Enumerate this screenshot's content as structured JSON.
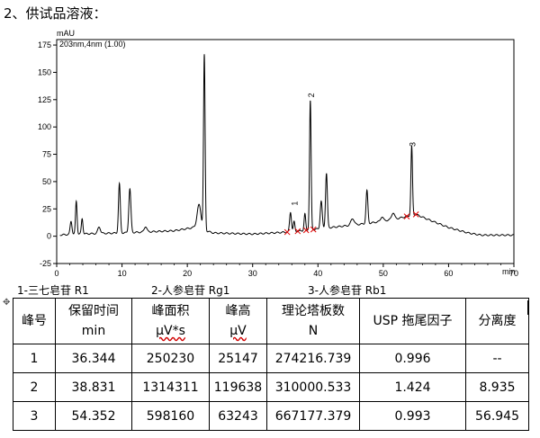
{
  "heading": "2、供试品溶液：",
  "chart_data": {
    "type": "line",
    "ylabel": "mAU",
    "xlabel": "min",
    "series_label": "203nm,4nm (1.00)",
    "xlim": [
      0,
      70
    ],
    "ylim": [
      -25,
      180
    ],
    "x_ticks": [
      0,
      10,
      20,
      30,
      40,
      50,
      60,
      70
    ],
    "y_ticks": [
      -25,
      0,
      25,
      50,
      75,
      100,
      125,
      150,
      175
    ],
    "baseline": [
      [
        0,
        1
      ],
      [
        3,
        2
      ],
      [
        10,
        3
      ],
      [
        18,
        5
      ],
      [
        21,
        8
      ],
      [
        24,
        3
      ],
      [
        30,
        2
      ],
      [
        36,
        4
      ],
      [
        42,
        8
      ],
      [
        48,
        12
      ],
      [
        52,
        16
      ],
      [
        55,
        20
      ],
      [
        57,
        15
      ],
      [
        60,
        8
      ],
      [
        63,
        3
      ],
      [
        65,
        1
      ],
      [
        70,
        1
      ]
    ],
    "peaks": [
      {
        "x": 2.2,
        "h": 12,
        "w": 0.14
      },
      {
        "x": 3.0,
        "h": 30,
        "w": 0.12
      },
      {
        "x": 3.9,
        "h": 14,
        "w": 0.12
      },
      {
        "x": 6.5,
        "h": 6,
        "w": 0.2
      },
      {
        "x": 9.6,
        "h": 45,
        "w": 0.14
      },
      {
        "x": 11.2,
        "h": 40,
        "w": 0.16
      },
      {
        "x": 13.6,
        "h": 5,
        "w": 0.2
      },
      {
        "x": 21.8,
        "h": 22,
        "w": 0.3
      },
      {
        "x": 22.6,
        "h": 160,
        "w": 0.12
      },
      {
        "x": 35.8,
        "h": 18,
        "w": 0.14
      },
      {
        "x": 36.344,
        "h": 9,
        "w": 0.12
      },
      {
        "x": 38.0,
        "h": 15,
        "w": 0.12
      },
      {
        "x": 38.831,
        "h": 118,
        "w": 0.12
      },
      {
        "x": 40.5,
        "h": 25,
        "w": 0.15
      },
      {
        "x": 41.3,
        "h": 50,
        "w": 0.14
      },
      {
        "x": 45.3,
        "h": 6,
        "w": 0.25
      },
      {
        "x": 47.5,
        "h": 30,
        "w": 0.14
      },
      {
        "x": 49.8,
        "h": 4,
        "w": 0.2
      },
      {
        "x": 51.5,
        "h": 6,
        "w": 0.22
      },
      {
        "x": 54.352,
        "h": 63,
        "w": 0.12
      }
    ],
    "peak_labels": [
      {
        "text": "1",
        "x": 36.344,
        "y": 28
      },
      {
        "text": "2",
        "x": 38.831,
        "y": 127
      },
      {
        "text": "3",
        "x": 54.352,
        "y": 82
      }
    ]
  },
  "compounds": [
    {
      "label": "1-三七皂苷 R1"
    },
    {
      "label": "2-人参皂苷 Rg1"
    },
    {
      "label": "3-人参皂苷 Rb1"
    }
  ],
  "table": {
    "headers": [
      {
        "line1": "峰号",
        "line2": ""
      },
      {
        "line1": "保留时间",
        "line2": "min"
      },
      {
        "line1": "峰面积",
        "line2": "μV*s"
      },
      {
        "line1": "峰高",
        "line2": "μV"
      },
      {
        "line1": "理论塔板数",
        "line2": "N"
      },
      {
        "line1": "USP 拖尾因子",
        "line2": ""
      },
      {
        "line1": "分离度",
        "line2": ""
      }
    ],
    "rows": [
      [
        "1",
        "36.344",
        "250230",
        "25147",
        "274216.739",
        "0.996",
        "--"
      ],
      [
        "2",
        "38.831",
        "1314311",
        "119638",
        "310000.533",
        "1.424",
        "8.935"
      ],
      [
        "3",
        "54.352",
        "598160",
        "63243",
        "667177.379",
        "0.993",
        "56.945"
      ]
    ]
  }
}
